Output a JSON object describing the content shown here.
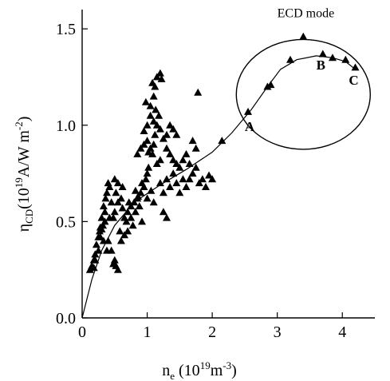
{
  "chart_data": {
    "type": "scatter",
    "title": "",
    "xlabel": {
      "base": "n",
      "sub": "e",
      "rest": " (10",
      "sup": "19",
      "unit": "m",
      "unit_sup": "-3",
      "close": ")"
    },
    "ylabel": {
      "base": "η",
      "sub": "CD",
      "rest": "(10",
      "sup": "19",
      "unit": "A/W m",
      "unit_sup": "-2",
      "close": ")"
    },
    "xlim": [
      0,
      4.5
    ],
    "ylim": [
      0,
      1.6
    ],
    "xticks": [
      0,
      1,
      2,
      3,
      4
    ],
    "xtick_labels": [
      "0",
      "1",
      "2",
      "3",
      "4"
    ],
    "yticks": [
      0.0,
      0.5,
      1.0,
      1.5
    ],
    "ytick_labels": [
      "0.0",
      "0.5",
      "1.0",
      "1.5"
    ],
    "grid": false,
    "marker": "triangle",
    "series": [
      {
        "points": [
          [
            0.12,
            0.25
          ],
          [
            0.15,
            0.27
          ],
          [
            0.18,
            0.3
          ],
          [
            0.2,
            0.33
          ],
          [
            0.22,
            0.38
          ],
          [
            0.25,
            0.42
          ],
          [
            0.27,
            0.45
          ],
          [
            0.28,
            0.47
          ],
          [
            0.3,
            0.46
          ],
          [
            0.32,
            0.48
          ],
          [
            0.3,
            0.52
          ],
          [
            0.35,
            0.55
          ],
          [
            0.33,
            0.58
          ],
          [
            0.36,
            0.62
          ],
          [
            0.38,
            0.65
          ],
          [
            0.4,
            0.7
          ],
          [
            0.42,
            0.68
          ],
          [
            0.45,
            0.6
          ],
          [
            0.5,
            0.55
          ],
          [
            0.48,
            0.52
          ],
          [
            0.55,
            0.6
          ],
          [
            0.52,
            0.65
          ],
          [
            0.6,
            0.62
          ],
          [
            0.62,
            0.57
          ],
          [
            0.65,
            0.52
          ],
          [
            0.7,
            0.55
          ],
          [
            0.72,
            0.6
          ],
          [
            0.75,
            0.58
          ],
          [
            0.68,
            0.5
          ],
          [
            0.58,
            0.45
          ],
          [
            0.4,
            0.4
          ],
          [
            0.45,
            0.35
          ],
          [
            0.5,
            0.3
          ],
          [
            0.52,
            0.27
          ],
          [
            0.55,
            0.25
          ],
          [
            0.48,
            0.28
          ],
          [
            0.38,
            0.35
          ],
          [
            0.33,
            0.4
          ],
          [
            0.25,
            0.35
          ],
          [
            0.2,
            0.3
          ],
          [
            0.8,
            0.6
          ],
          [
            0.82,
            0.55
          ],
          [
            0.85,
            0.62
          ],
          [
            0.88,
            0.58
          ],
          [
            0.9,
            0.65
          ],
          [
            0.92,
            0.7
          ],
          [
            0.95,
            0.68
          ],
          [
            0.98,
            0.72
          ],
          [
            1.0,
            0.75
          ],
          [
            1.02,
            0.78
          ],
          [
            0.85,
            0.85
          ],
          [
            0.9,
            0.88
          ],
          [
            0.95,
            0.9
          ],
          [
            1.0,
            0.92
          ],
          [
            1.05,
            0.88
          ],
          [
            1.08,
            0.85
          ],
          [
            1.1,
            0.9
          ],
          [
            1.12,
            0.95
          ],
          [
            1.15,
            1.0
          ],
          [
            1.18,
            1.05
          ],
          [
            1.05,
            1.1
          ],
          [
            1.1,
            1.15
          ],
          [
            1.12,
            1.2
          ],
          [
            1.15,
            1.25
          ],
          [
            1.2,
            1.27
          ],
          [
            1.22,
            1.24
          ],
          [
            1.08,
            1.22
          ],
          [
            1.13,
            1.08
          ],
          [
            1.2,
            0.98
          ],
          [
            1.25,
            0.93
          ],
          [
            1.3,
            0.88
          ],
          [
            1.35,
            0.85
          ],
          [
            1.4,
            0.82
          ],
          [
            1.45,
            0.8
          ],
          [
            1.5,
            0.78
          ],
          [
            1.55,
            0.82
          ],
          [
            1.6,
            0.85
          ],
          [
            1.65,
            0.8
          ],
          [
            1.7,
            0.75
          ],
          [
            1.75,
            0.78
          ],
          [
            1.2,
            0.7
          ],
          [
            1.25,
            0.65
          ],
          [
            1.3,
            0.72
          ],
          [
            1.35,
            0.68
          ],
          [
            1.4,
            0.75
          ],
          [
            1.45,
            0.7
          ],
          [
            1.5,
            0.65
          ],
          [
            1.55,
            0.72
          ],
          [
            1.6,
            0.68
          ],
          [
            1.65,
            0.72
          ],
          [
            1.25,
            0.55
          ],
          [
            1.3,
            0.52
          ],
          [
            1.8,
            0.7
          ],
          [
            1.85,
            0.72
          ],
          [
            1.9,
            0.68
          ],
          [
            1.95,
            0.74
          ],
          [
            2.0,
            0.72
          ],
          [
            1.78,
            1.17
          ],
          [
            1.75,
            0.88
          ],
          [
            1.7,
            0.92
          ],
          [
            0.6,
            0.4
          ],
          [
            0.65,
            0.43
          ],
          [
            0.7,
            0.45
          ],
          [
            0.35,
            0.5
          ],
          [
            0.42,
            0.52
          ],
          [
            0.28,
            0.42
          ],
          [
            0.18,
            0.26
          ],
          [
            0.5,
            0.72
          ],
          [
            0.55,
            0.7
          ],
          [
            0.62,
            0.68
          ],
          [
            1.0,
            1.0
          ],
          [
            1.05,
            1.05
          ],
          [
            1.1,
            1.02
          ],
          [
            0.95,
            0.97
          ],
          [
            0.98,
            1.12
          ],
          [
            1.02,
            0.86
          ],
          [
            1.15,
            0.8
          ],
          [
            1.2,
            0.82
          ],
          [
            1.3,
            0.95
          ],
          [
            1.35,
            1.0
          ],
          [
            1.4,
            0.98
          ],
          [
            1.45,
            0.95
          ],
          [
            0.75,
            0.52
          ],
          [
            0.78,
            0.48
          ],
          [
            0.82,
            0.66
          ],
          [
            0.86,
            0.63
          ],
          [
            1.0,
            0.62
          ],
          [
            1.06,
            0.66
          ],
          [
            1.1,
            0.6
          ],
          [
            0.92,
            0.5
          ],
          [
            2.15,
            0.92
          ],
          [
            2.55,
            1.07
          ],
          [
            2.85,
            1.2
          ],
          [
            2.9,
            1.21
          ],
          [
            3.2,
            1.34
          ],
          [
            3.4,
            1.46
          ],
          [
            3.7,
            1.37
          ],
          [
            3.85,
            1.35
          ],
          [
            4.05,
            1.34
          ],
          [
            4.2,
            1.3
          ]
        ]
      }
    ],
    "fit_curve": [
      [
        0.0,
        0.0
      ],
      [
        0.15,
        0.2
      ],
      [
        0.3,
        0.35
      ],
      [
        0.5,
        0.48
      ],
      [
        0.8,
        0.6
      ],
      [
        1.2,
        0.69
      ],
      [
        1.6,
        0.77
      ],
      [
        2.0,
        0.86
      ],
      [
        2.3,
        0.96
      ],
      [
        2.6,
        1.08
      ],
      [
        2.85,
        1.2
      ],
      [
        3.05,
        1.29
      ],
      [
        3.3,
        1.34
      ],
      [
        3.6,
        1.36
      ],
      [
        3.85,
        1.35
      ],
      [
        4.05,
        1.33
      ],
      [
        4.2,
        1.29
      ]
    ],
    "ellipse": {
      "cx": 3.4,
      "cy": 1.16,
      "rx": 1.03,
      "ry": 0.285
    },
    "annotations": [
      {
        "text": "ECD mode",
        "x": 3.0,
        "y": 1.56
      },
      {
        "text": "A",
        "x": 2.5,
        "y": 0.97
      },
      {
        "text": "B",
        "x": 3.6,
        "y": 1.29
      },
      {
        "text": "C",
        "x": 4.1,
        "y": 1.21
      }
    ]
  }
}
